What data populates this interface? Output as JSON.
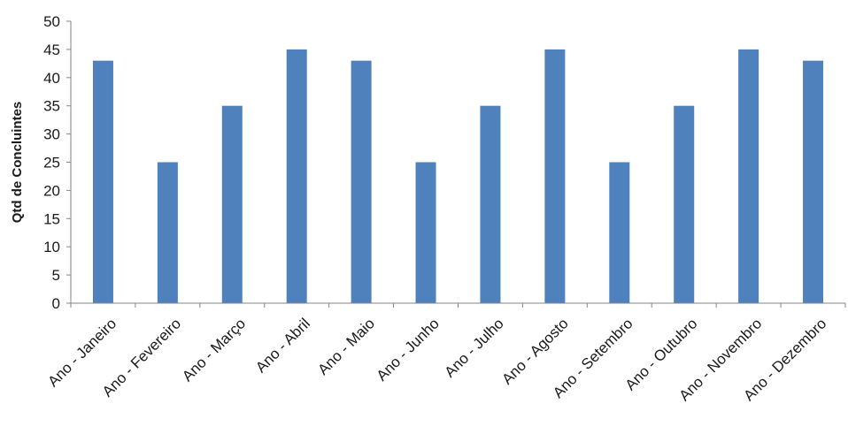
{
  "chart_data": {
    "type": "bar",
    "title": "",
    "xlabel": "",
    "ylabel": "Qtd de Concluintes",
    "ylim": [
      0,
      50
    ],
    "ytick_step": 5,
    "grid": false,
    "bar_color": "#4F81BD",
    "categories": [
      "Ano - Janeiro",
      "Ano - Fevereiro",
      "Ano - Março",
      "Ano - Abril",
      "Ano - Maio",
      "Ano - Junho",
      "Ano - Julho",
      "Ano - Agosto",
      "Ano - Setembro",
      "Ano - Outubro",
      "Ano - Novembro",
      "Ano - Dezembro"
    ],
    "values": [
      43,
      25,
      35,
      45,
      43,
      25,
      35,
      45,
      25,
      35,
      45,
      43
    ]
  }
}
